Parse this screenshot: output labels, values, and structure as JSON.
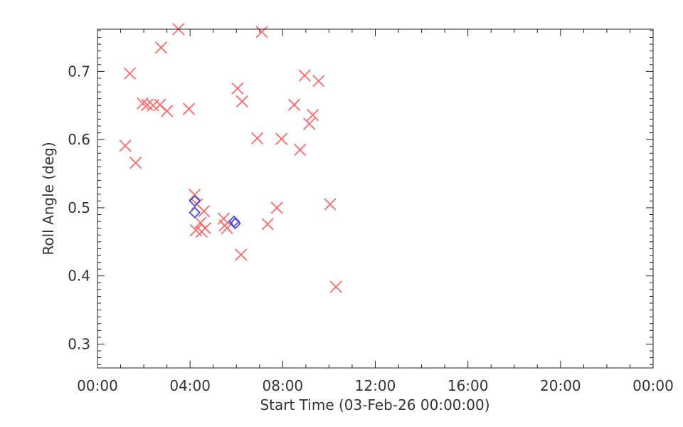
{
  "chart_data": {
    "type": "scatter",
    "title": "",
    "xlabel": "Start Time (03-Feb-26 00:00:00)",
    "ylabel": "Roll Angle (deg)",
    "x_unit": "hours",
    "xlim": [
      0,
      24
    ],
    "ylim": [
      0.265,
      0.762
    ],
    "x_major_ticks": [
      0,
      4,
      8,
      12,
      16,
      20,
      24
    ],
    "x_tick_labels": [
      "00:00",
      "04:00",
      "08:00",
      "12:00",
      "16:00",
      "20:00",
      "00:00"
    ],
    "y_major_ticks": [
      0.3,
      0.4,
      0.5,
      0.6,
      0.7
    ],
    "y_tick_labels": [
      "0.3",
      "0.4",
      "0.5",
      "0.6",
      "0.7"
    ],
    "grid": false,
    "legend": "none",
    "colors": {
      "cross": "#ff6a6a",
      "diamond": "#4a4ae0",
      "axis": "#222222"
    },
    "series": [
      {
        "marker": "x",
        "color": "#ff6a6a",
        "points": [
          [
            1.2,
            0.591
          ],
          [
            1.4,
            0.697
          ],
          [
            1.65,
            0.566
          ],
          [
            1.95,
            0.653
          ],
          [
            2.15,
            0.651
          ],
          [
            2.4,
            0.65
          ],
          [
            2.7,
            0.651
          ],
          [
            2.75,
            0.735
          ],
          [
            3.0,
            0.642
          ],
          [
            3.5,
            0.762
          ],
          [
            3.95,
            0.645
          ],
          [
            4.2,
            0.519
          ],
          [
            4.25,
            0.467
          ],
          [
            4.3,
            0.505
          ],
          [
            4.45,
            0.478
          ],
          [
            4.5,
            0.465
          ],
          [
            4.6,
            0.495
          ],
          [
            4.65,
            0.47
          ],
          [
            5.45,
            0.484
          ],
          [
            5.5,
            0.474
          ],
          [
            5.6,
            0.47
          ],
          [
            6.05,
            0.675
          ],
          [
            6.2,
            0.431
          ],
          [
            6.25,
            0.656
          ],
          [
            6.9,
            0.602
          ],
          [
            7.1,
            0.758
          ],
          [
            7.35,
            0.476
          ],
          [
            7.75,
            0.5
          ],
          [
            7.95,
            0.601
          ],
          [
            8.5,
            0.651
          ],
          [
            8.75,
            0.585
          ],
          [
            8.95,
            0.694
          ],
          [
            9.15,
            0.623
          ],
          [
            9.3,
            0.636
          ],
          [
            9.55,
            0.686
          ],
          [
            10.05,
            0.505
          ],
          [
            10.3,
            0.384
          ]
        ]
      },
      {
        "marker": "diamond",
        "color": "#4a4ae0",
        "points": [
          [
            4.2,
            0.51
          ],
          [
            4.2,
            0.493
          ],
          [
            5.9,
            0.48
          ],
          [
            5.95,
            0.477
          ]
        ]
      }
    ]
  }
}
